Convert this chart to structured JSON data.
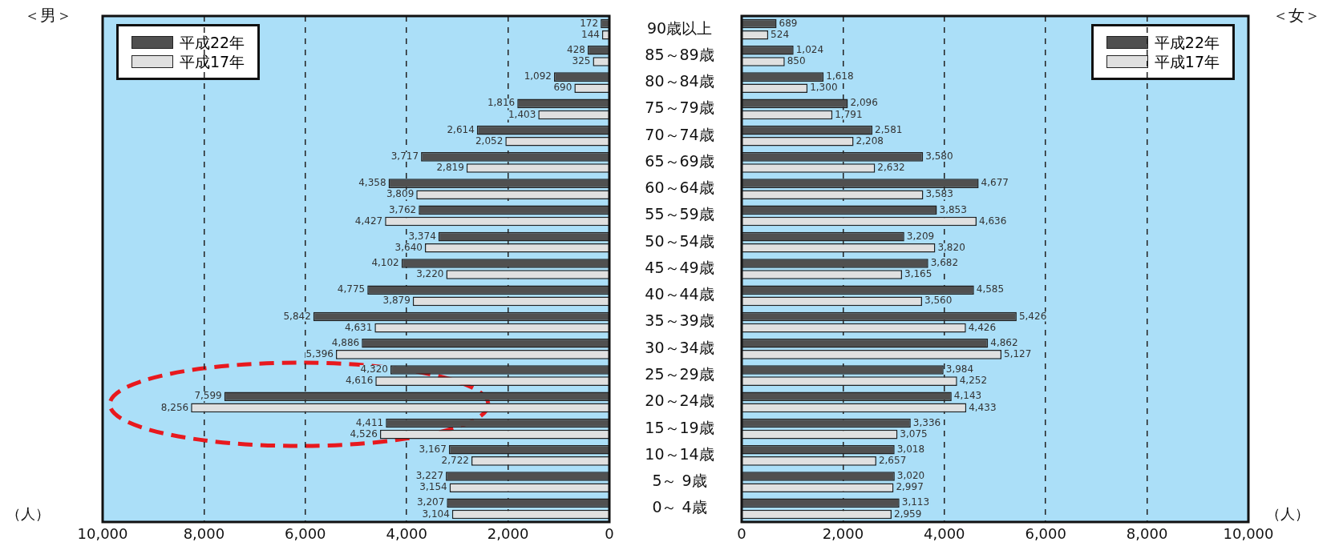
{
  "chart_data": [
    {
      "type": "bar",
      "orientation": "horizontal",
      "title": "＜男＞",
      "xlabel": "（人）",
      "categories": [
        "90歳以上",
        "85～89歳",
        "80～84歳",
        "75～79歳",
        "70～74歳",
        "65～69歳",
        "60～64歳",
        "55～59歳",
        "50～54歳",
        "45～49歳",
        "40～44歳",
        "35～39歳",
        "30～34歳",
        "25～29歳",
        "20～24歳",
        "15～19歳",
        "10～14歳",
        "5～ 9歳",
        "0～ 4歳"
      ],
      "series": [
        {
          "name": "平成22年",
          "color": "#505050",
          "values": [
            172,
            428,
            1092,
            1816,
            2614,
            3717,
            4358,
            3762,
            3374,
            4102,
            4775,
            5842,
            4886,
            4320,
            7599,
            4411,
            3167,
            3227,
            3207
          ],
          "value_labels": [
            "172",
            "428",
            "1,092",
            "1,816",
            "2,614",
            "3,717",
            "4,358",
            "3,762",
            "3,374",
            "4,102",
            "4,775",
            "5,842",
            "4,886",
            "4,320",
            "7,599",
            "4,411",
            "3,167",
            "3,227",
            "3,207"
          ]
        },
        {
          "name": "平成17年",
          "color": "#e0e0e0",
          "values": [
            144,
            325,
            690,
            1403,
            2052,
            2819,
            3809,
            4427,
            3640,
            3220,
            3879,
            4631,
            5396,
            4616,
            8256,
            4526,
            2722,
            3154,
            3104
          ],
          "value_labels": [
            "144",
            "325",
            "690",
            "1,403",
            "2,052",
            "2,819",
            "3,809",
            "4,427",
            "3,640",
            "3,220",
            "3,879",
            "4,631",
            "5,396",
            "4,616",
            "8,256",
            "4,526",
            "2,722",
            "3,154",
            "3,104"
          ]
        }
      ],
      "xlim": [
        10000,
        0
      ],
      "xticks": [
        {
          "value": 10000,
          "label": "10,000"
        },
        {
          "value": 8000,
          "label": "8,000"
        },
        {
          "value": 6000,
          "label": "6,000"
        },
        {
          "value": 4000,
          "label": "4,000"
        },
        {
          "value": 2000,
          "label": "2,000"
        },
        0
      ],
      "grid": "x",
      "legend": "top left"
    },
    {
      "type": "bar",
      "orientation": "horizontal",
      "title": "＜女＞",
      "xlabel": "（人）",
      "categories": [
        null,
        null,
        null,
        null,
        null,
        null,
        null,
        null,
        null,
        null,
        null,
        null,
        null,
        null,
        null,
        null,
        null,
        null,
        null
      ],
      "series": [
        {
          "name": "平成22年",
          "color": "#505050",
          "values": [
            689,
            1024,
            1618,
            2096,
            2581,
            3580,
            4677,
            3853,
            3209,
            3682,
            4585,
            5426,
            4862,
            3984,
            4143,
            3336,
            3018,
            3020,
            3113
          ],
          "value_labels": [
            "689",
            "1,024",
            "1,618",
            "2,096",
            "2,581",
            "3,580",
            "4,677",
            "3,853",
            "3,209",
            "3,682",
            "4,585",
            "5,426",
            "4,862",
            "3,984",
            "4,143",
            "3,336",
            "3,018",
            "3,020",
            "3,113"
          ]
        },
        {
          "name": "平成17年",
          "color": "#e0e0e0",
          "values": [
            524,
            850,
            1300,
            1791,
            2208,
            2632,
            3583,
            4636,
            3820,
            3165,
            3560,
            4426,
            5127,
            4252,
            4433,
            3075,
            2657,
            2997,
            2959
          ],
          "value_labels": [
            "524",
            "850",
            "1,300",
            "1,791",
            "2,208",
            "2,632",
            "3,583",
            "4,636",
            "3,820",
            "3,165",
            "3,560",
            "4,426",
            "5,127",
            "4,252",
            "4,433",
            "3,075",
            "2,657",
            "2,997",
            "2,959"
          ]
        }
      ],
      "xlim": [
        0,
        10000
      ],
      "xticks": [
        0,
        {
          "value": 2000,
          "label": "2,000"
        },
        {
          "value": 4000,
          "label": "4,000"
        },
        {
          "value": 6000,
          "label": "6,000"
        },
        {
          "value": 8000,
          "label": "8,000"
        },
        {
          "value": 10000,
          "label": "10,000"
        }
      ],
      "grid": "x",
      "legend": "top right",
      "tick_labels": "x"
    }
  ]
}
